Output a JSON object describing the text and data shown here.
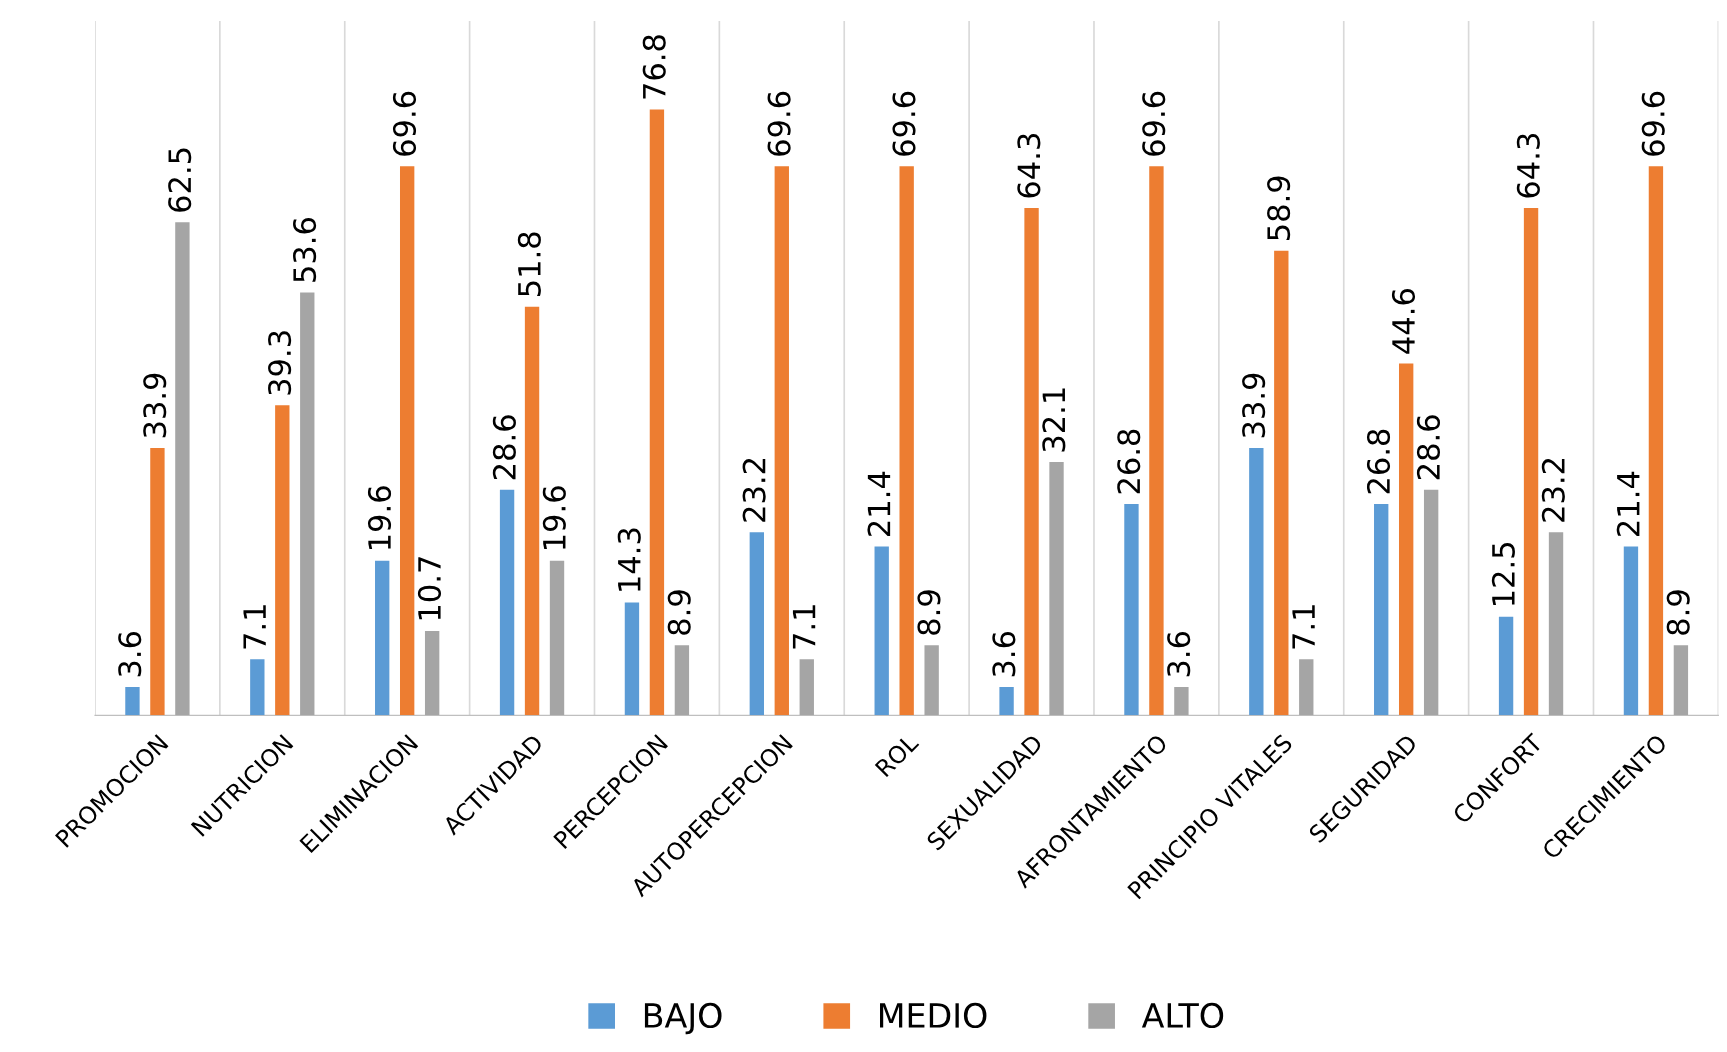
{
  "chart_data": {
    "type": "bar",
    "categories": [
      "PROMOCION",
      "NUTRICION",
      "ELIMINACION",
      "ACTIVIDAD",
      "PERCEPCION",
      "AUTOPERCEPCION",
      "ROL",
      "SEXUALIDAD",
      "AFRONTAMIENTO",
      "PRINCIPIO VITALES",
      "SEGURIDAD",
      "CONFORT",
      "CRECIMIENTO"
    ],
    "series": [
      {
        "name": "BAJO",
        "color": "#5b9bd5",
        "values": [
          3.6,
          7.1,
          19.6,
          28.6,
          14.3,
          23.2,
          21.4,
          3.6,
          26.8,
          33.9,
          26.8,
          12.5,
          21.4
        ]
      },
      {
        "name": "MEDIO",
        "color": "#ed7d31",
        "values": [
          33.9,
          39.3,
          69.6,
          51.8,
          76.8,
          69.6,
          69.6,
          64.3,
          69.6,
          58.9,
          44.6,
          64.3,
          69.6
        ]
      },
      {
        "name": "ALTO",
        "color": "#a5a5a5",
        "values": [
          62.5,
          53.6,
          10.7,
          19.6,
          8.9,
          7.1,
          8.9,
          32.1,
          3.6,
          7.1,
          28.6,
          23.2,
          8.9
        ]
      }
    ],
    "ylim": [
      0,
      88
    ],
    "tick_labels": "x",
    "data_labels": true,
    "grid": "x",
    "legend": "bottom"
  }
}
